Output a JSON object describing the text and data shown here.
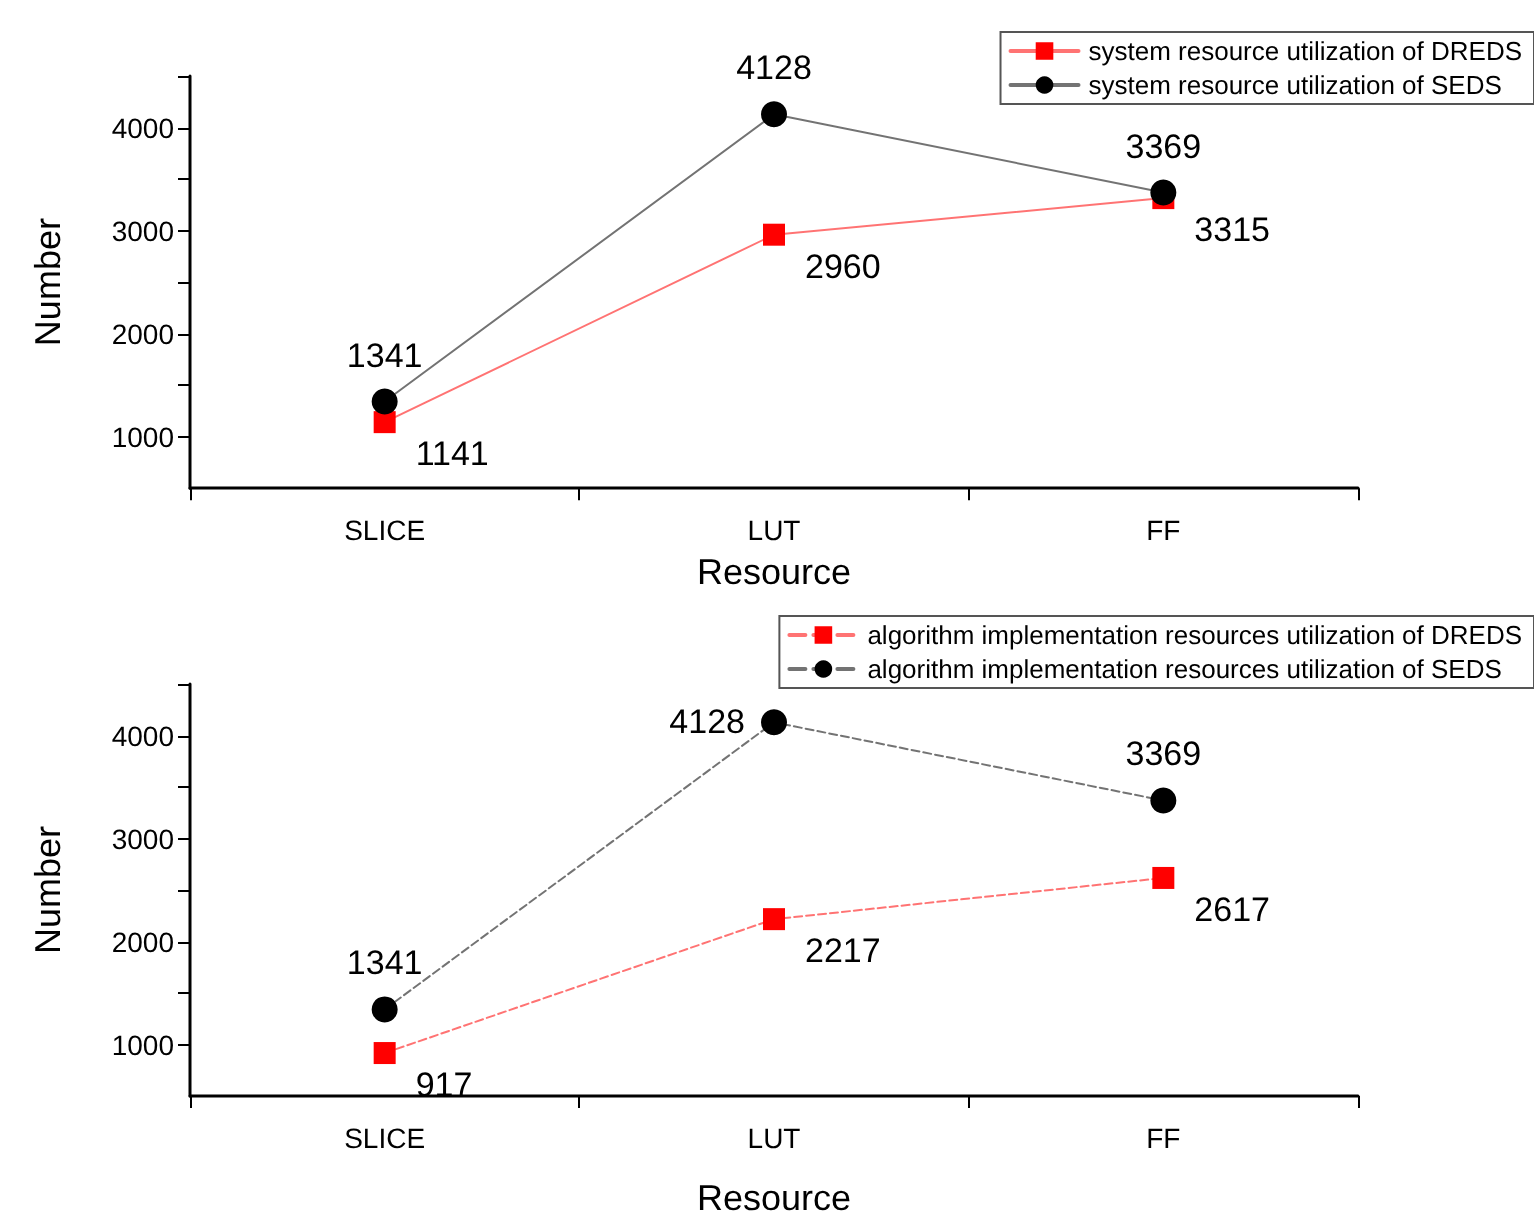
{
  "chart_data": [
    {
      "type": "line",
      "xlabel": "Resource",
      "ylabel": "Number",
      "categories": [
        "SLICE",
        "LUT",
        "FF"
      ],
      "series": [
        {
          "name": "system resource utilization of DREDS",
          "color": "#ff0000",
          "marker": "square",
          "values": [
            1141,
            2960,
            3315
          ]
        },
        {
          "name": "system resource utilization of SEDS",
          "color": "#000000",
          "marker": "circle",
          "values": [
            1341,
            4128,
            3369
          ]
        }
      ],
      "ylim": [
        500,
        4500
      ],
      "yticks": [
        1000,
        {
          "value": 1500,
          "label": null
        },
        2000,
        {
          "value": 2500,
          "label": null
        },
        3000,
        {
          "value": 3500,
          "label": null
        },
        4000,
        {
          "value": 4500,
          "label": null
        }
      ],
      "data_labels": true,
      "legend": "top right",
      "line_style": "solid",
      "grid": false
    },
    {
      "type": "line",
      "xlabel": "Resource",
      "ylabel": "Number",
      "categories": [
        "SLICE",
        "LUT",
        "FF"
      ],
      "series": [
        {
          "name": "algorithm implementation resources utilization of DREDS",
          "color": "#ff0000",
          "marker": "square",
          "values": [
            917,
            2217,
            2617
          ]
        },
        {
          "name": "algorithm implementation resources utilization of SEDS",
          "color": "#000000",
          "marker": "circle",
          "values": [
            1341,
            4128,
            3369
          ]
        }
      ],
      "ylim": [
        500,
        4500
      ],
      "yticks": [
        1000,
        {
          "value": 1500,
          "label": null
        },
        2000,
        {
          "value": 2500,
          "label": null
        },
        3000,
        {
          "value": 3500,
          "label": null
        },
        4000,
        {
          "value": 4500,
          "label": null
        }
      ],
      "data_labels": true,
      "legend": "top right",
      "line_style": "dashed",
      "grid": false
    }
  ]
}
